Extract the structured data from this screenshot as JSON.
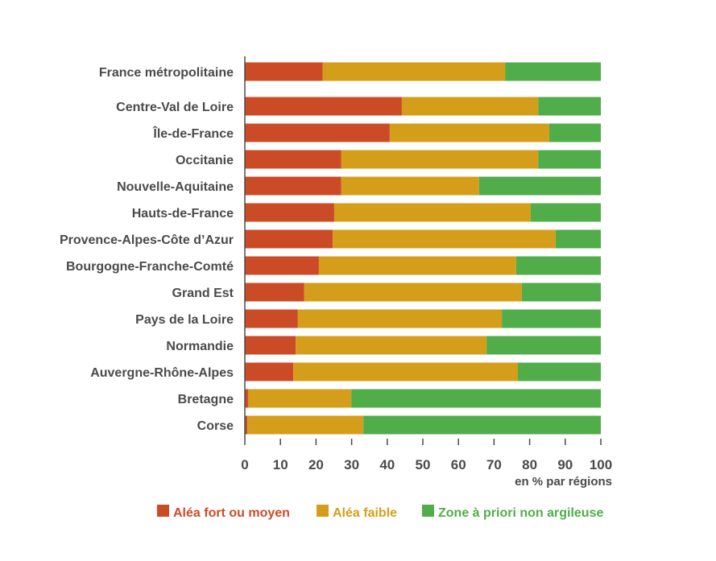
{
  "chart_data": {
    "type": "bar",
    "orientation": "horizontal",
    "stacked": true,
    "title": "",
    "xlabel": "en % par régions",
    "ylabel": "",
    "xlim": [
      0,
      100
    ],
    "xticks": [
      "0",
      "10",
      "20",
      "30",
      "40",
      "50",
      "60",
      "70",
      "80",
      "90",
      "100"
    ],
    "grid": false,
    "legend_position": "bottom",
    "categories": [
      "France métropolitaine",
      "Centre-Val de Loire",
      "Île-de-France",
      "Occitanie",
      "Nouvelle-Aquitaine",
      "Hauts-de-France",
      "Provence-Alpes-Côte d’Azur",
      "Bourgogne-Franche-Comté",
      "Grand Est",
      "Pays de la Loire",
      "Normandie",
      "Auvergne-Rhône-Alpes",
      "Bretagne",
      "Corse"
    ],
    "series": [
      {
        "name": "Aléa fort ou moyen",
        "color": "#cc4b27",
        "values": [
          21.9,
          44.1,
          40.7,
          27.1,
          27.1,
          25.1,
          24.7,
          20.8,
          16.7,
          14.9,
          14.3,
          13.6,
          0.9,
          0.7
        ]
      },
      {
        "name": "Aléa faible",
        "color": "#d59e1a",
        "values": [
          51.2,
          38.3,
          44.8,
          55.3,
          38.7,
          55.2,
          62.6,
          55.4,
          61.1,
          57.3,
          53.6,
          63.1,
          29.0,
          32.6
        ]
      },
      {
        "name": "Zone à priori non argileuse",
        "color": "#50ad4a",
        "values": [
          26.9,
          17.6,
          14.5,
          17.6,
          34.2,
          19.7,
          12.7,
          23.8,
          22.2,
          27.8,
          32.1,
          23.3,
          70.1,
          66.7
        ]
      }
    ]
  }
}
